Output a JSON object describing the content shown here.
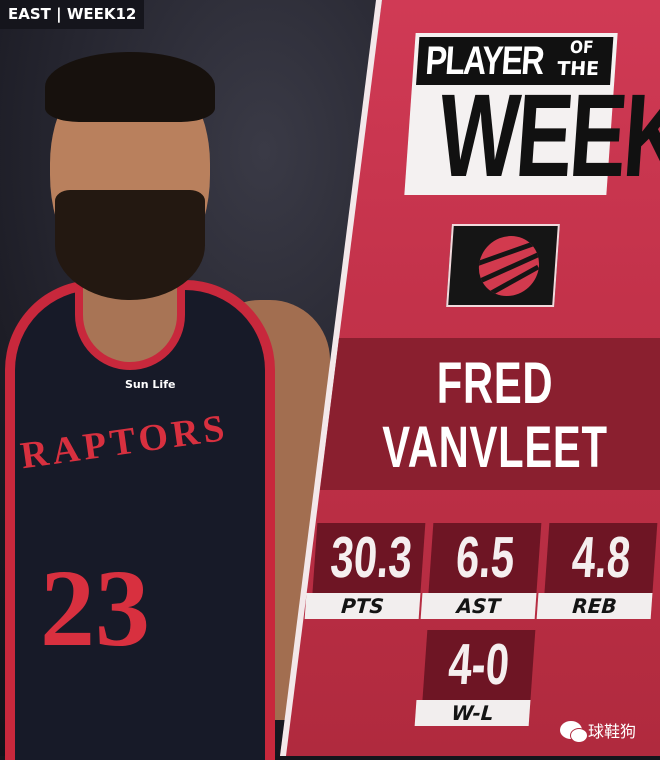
{
  "tag": "EAST | WEEK12",
  "jersey": {
    "team": "RAPTORS",
    "number": "23",
    "sponsor": "Sun Life"
  },
  "title": {
    "line1": "PLAYER",
    "of": "OF",
    "the": "THE",
    "line2": "WEEK"
  },
  "team_logo": "raptors-basketball-claw-icon",
  "player": {
    "first": "FRED",
    "last": "VANVLEET"
  },
  "stats": [
    {
      "value": "30.3",
      "label": "PTS"
    },
    {
      "value": "6.5",
      "label": "AST"
    },
    {
      "value": "4.8",
      "label": "REB"
    },
    {
      "value": "4-0",
      "label": "W-L"
    }
  ],
  "watermark": "球鞋狗",
  "colors": {
    "panel": "#c3324a",
    "band": "#8a1f2f",
    "stat_box": "#6e1524"
  }
}
